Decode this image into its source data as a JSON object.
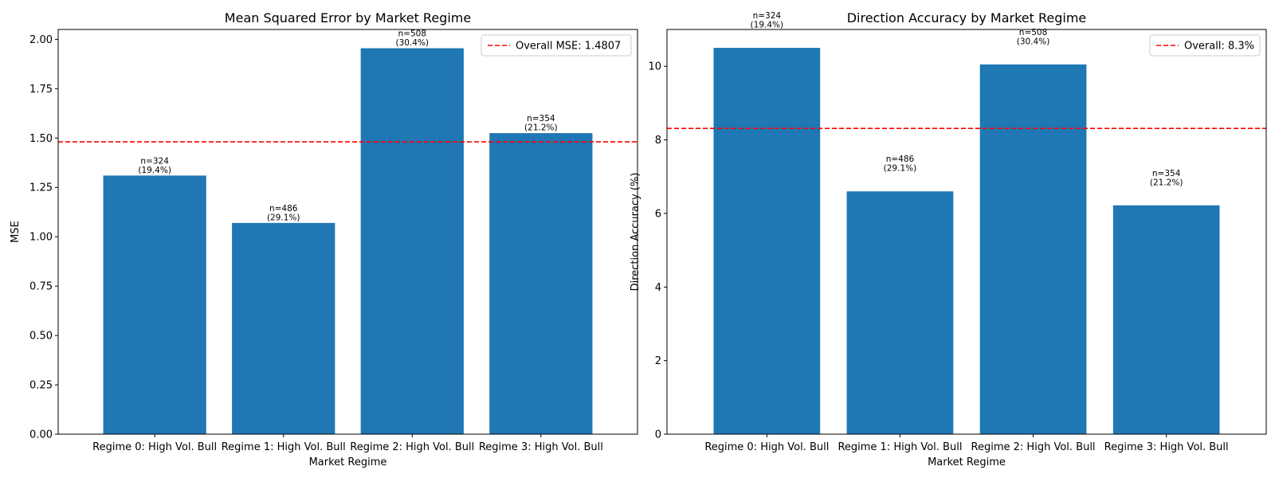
{
  "chart_data": [
    {
      "type": "bar",
      "title": "Mean Squared Error by Market Regime",
      "xlabel": "Market Regime",
      "ylabel": "MSE",
      "categories": [
        "Regime 0: High Vol. Bull",
        "Regime 1: High Vol. Bull",
        "Regime 2: High Vol. Bull",
        "Regime 3: High Vol. Bull"
      ],
      "values": [
        1.31,
        1.07,
        1.955,
        1.525
      ],
      "bar_labels": [
        "n=324\n(19.4%)",
        "n=486\n(29.1%)",
        "n=508\n(30.4%)",
        "n=354\n(21.2%)"
      ],
      "ylim": [
        0,
        2.05
      ],
      "yticks": [
        0.0,
        0.25,
        0.5,
        0.75,
        1.0,
        1.25,
        1.5,
        1.75,
        2.0
      ],
      "ytick_labels": [
        "0.00",
        "0.25",
        "0.50",
        "0.75",
        "1.00",
        "1.25",
        "1.50",
        "1.75",
        "2.00"
      ],
      "reference_line": {
        "value": 1.4807,
        "label": "Overall MSE: 1.4807",
        "color": "#ff0000",
        "style": "dashed"
      },
      "bar_color": "#1f77b4",
      "grid": false,
      "legend_position": "top-right"
    },
    {
      "type": "bar",
      "title": "Direction Accuracy by Market Regime",
      "xlabel": "Market Regime",
      "ylabel": "Direction Accuracy (%)",
      "categories": [
        "Regime 0: High Vol. Bull",
        "Regime 1: High Vol. Bull",
        "Regime 2: High Vol. Bull",
        "Regime 3: High Vol. Bull"
      ],
      "values": [
        10.5,
        6.6,
        10.05,
        6.22
      ],
      "bar_labels": [
        "n=324\n(19.4%)",
        "n=486\n(29.1%)",
        "n=508\n(30.4%)",
        "n=354\n(21.2%)"
      ],
      "ylim": [
        0,
        11
      ],
      "yticks": [
        0,
        2,
        4,
        6,
        8,
        10
      ],
      "ytick_labels": [
        "0",
        "2",
        "4",
        "6",
        "8",
        "10"
      ],
      "reference_line": {
        "value": 8.31,
        "label": "Overall: 8.3%",
        "color": "#ff0000",
        "style": "dashed"
      },
      "bar_color": "#1f77b4",
      "grid": false,
      "legend_position": "top-right"
    }
  ]
}
